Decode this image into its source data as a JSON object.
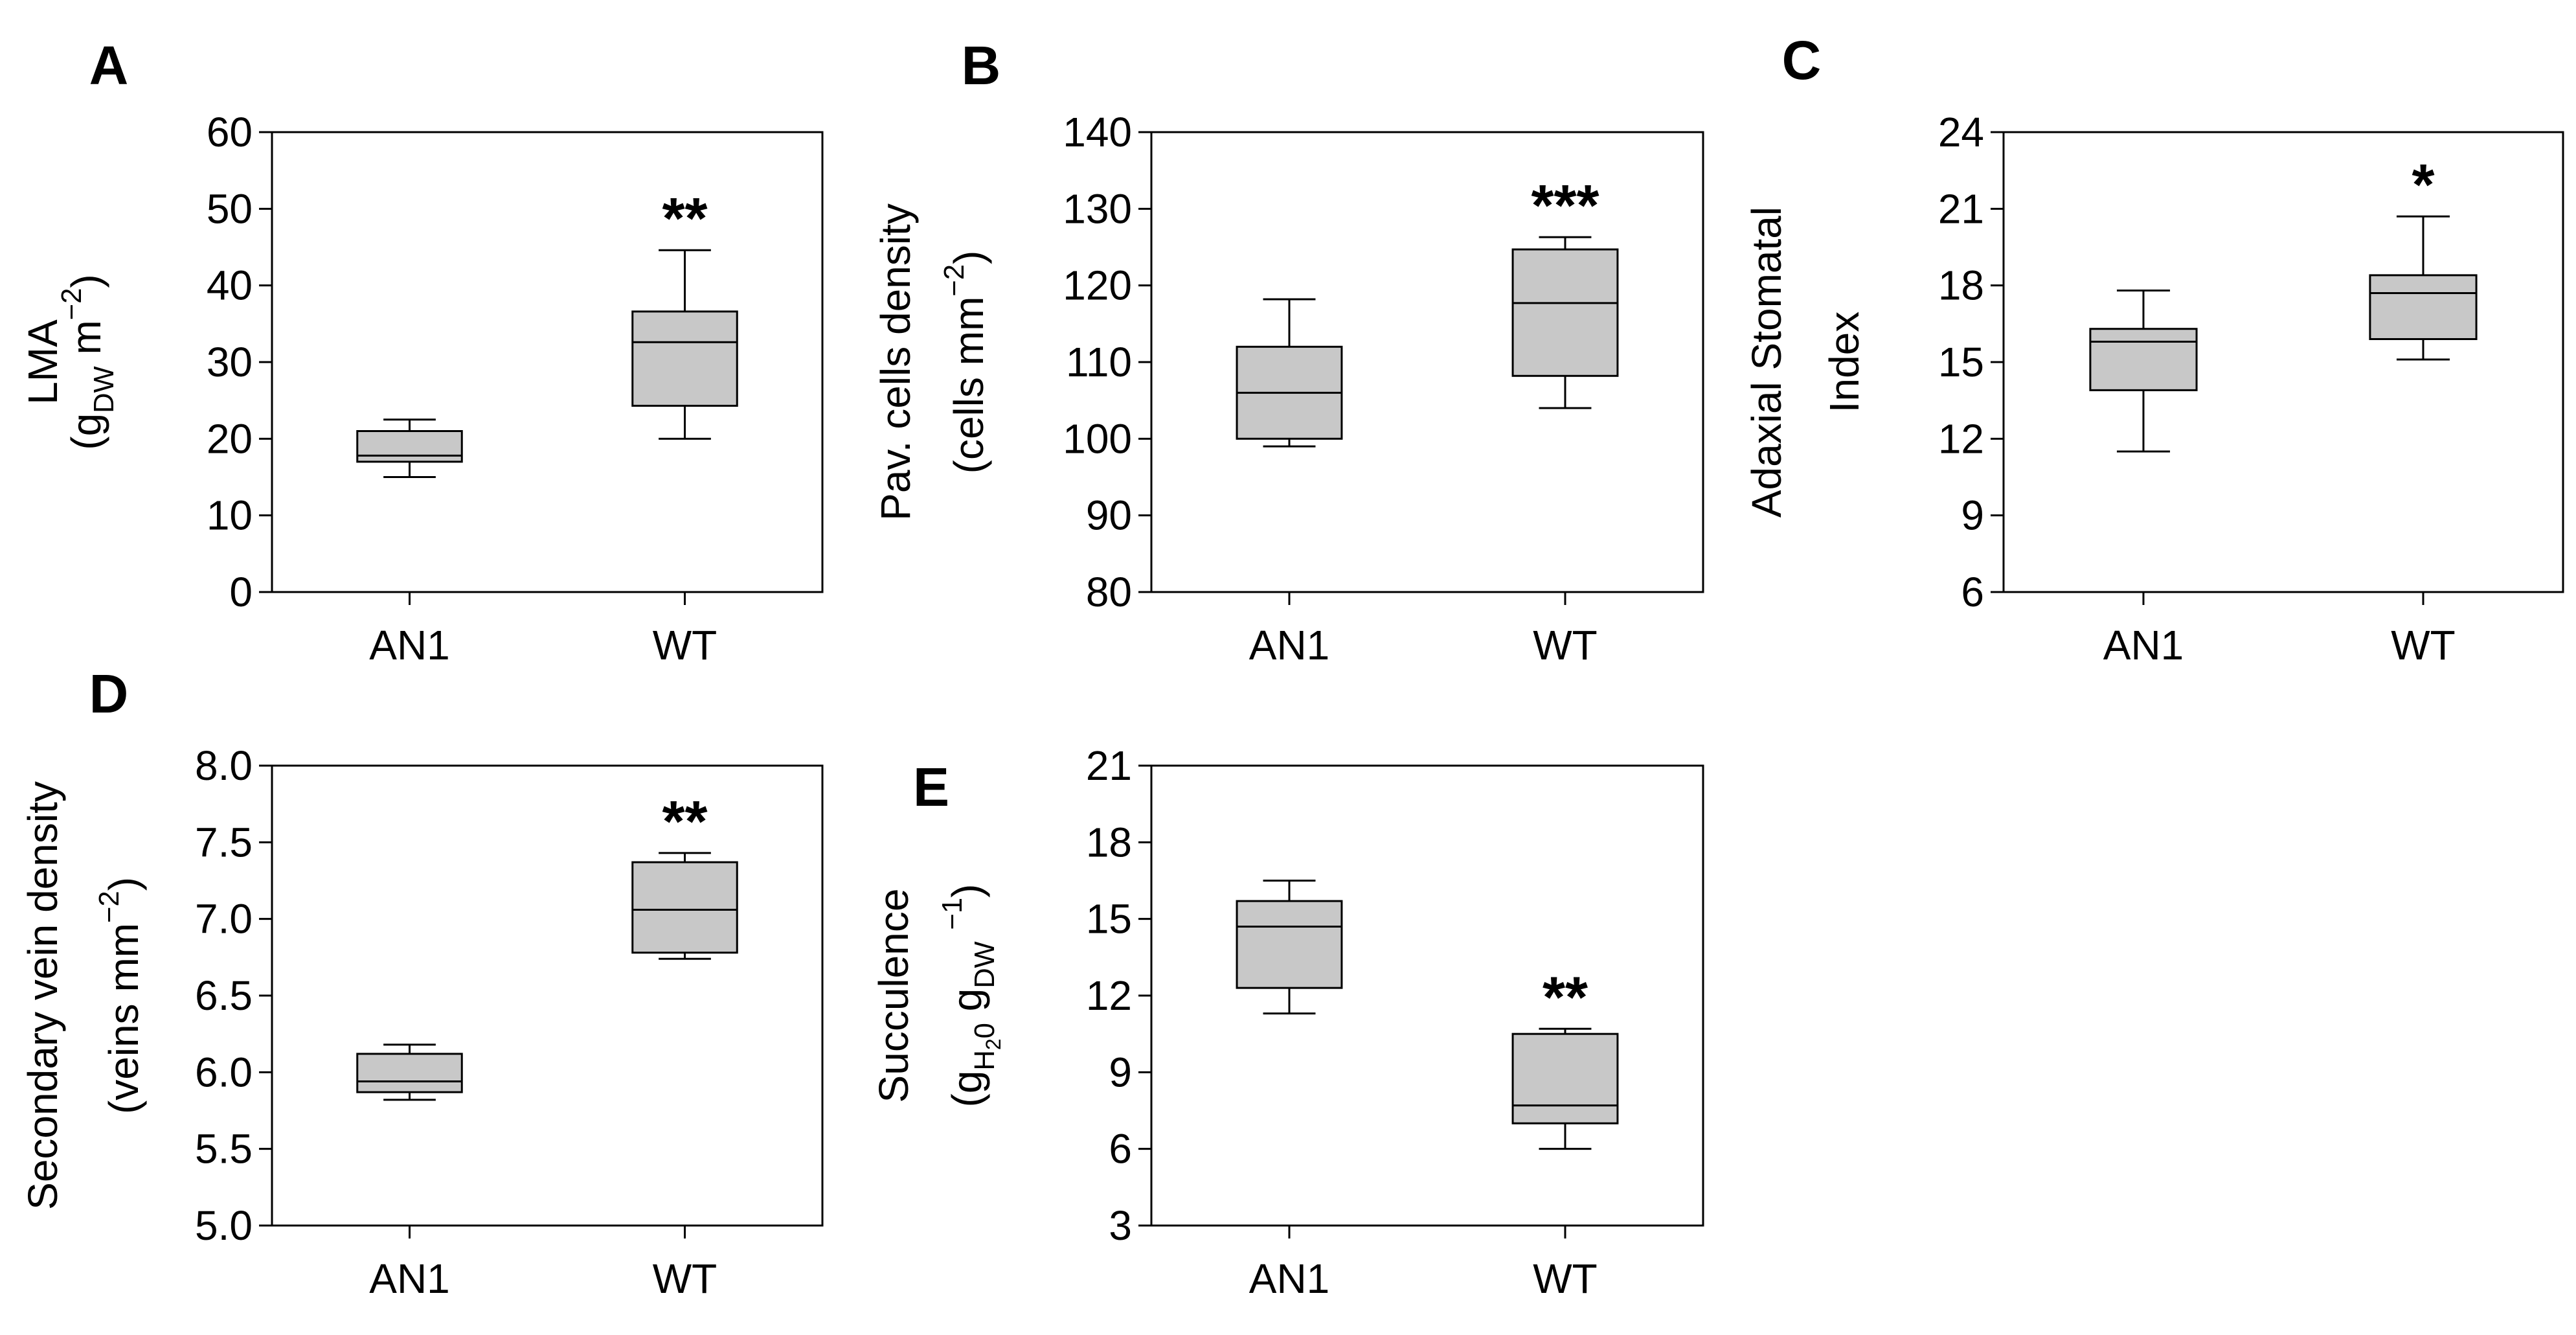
{
  "colors": {
    "box_fill": "#c8c8c8",
    "stroke": "#000000",
    "background": "#ffffff"
  },
  "chart_data": [
    {
      "id": "A",
      "type": "box",
      "panel_label": "A",
      "ylabel_lines": [
        [
          {
            "t": "LMA"
          }
        ],
        [
          {
            "t": "(g"
          },
          {
            "t": "DW",
            "sub": true
          },
          {
            "t": " m"
          },
          {
            "t": "−2",
            "sup": true
          },
          {
            "t": ")"
          }
        ]
      ],
      "ylim": [
        0,
        60
      ],
      "yticks": [
        0,
        10,
        20,
        30,
        40,
        50,
        60
      ],
      "tick_labels": [
        "0",
        "10",
        "20",
        "30",
        "40",
        "50",
        "60"
      ],
      "categories": [
        "AN1",
        "WT"
      ],
      "boxes": [
        {
          "category": "AN1",
          "whisker_low": 15,
          "q1": 17,
          "median": 17.8,
          "q3": 21,
          "whisker_high": 22.5,
          "signif": ""
        },
        {
          "category": "WT",
          "whisker_low": 20,
          "q1": 24.3,
          "median": 32.6,
          "q3": 36.6,
          "whisker_high": 44.6,
          "signif": "**"
        }
      ]
    },
    {
      "id": "B",
      "type": "box",
      "panel_label": "B",
      "ylabel_lines": [
        [
          {
            "t": "Pav. cells density"
          }
        ],
        [
          {
            "t": "(cells mm"
          },
          {
            "t": "−2",
            "sup": true
          },
          {
            "t": ")"
          }
        ]
      ],
      "ylim": [
        80,
        140
      ],
      "yticks": [
        80,
        90,
        100,
        110,
        120,
        130,
        140
      ],
      "tick_labels": [
        "80",
        "90",
        "100",
        "110",
        "120",
        "130",
        "140"
      ],
      "categories": [
        "AN1",
        "WT"
      ],
      "boxes": [
        {
          "category": "AN1",
          "whisker_low": 99,
          "q1": 100,
          "median": 106,
          "q3": 112,
          "whisker_high": 118.2,
          "signif": ""
        },
        {
          "category": "WT",
          "whisker_low": 104,
          "q1": 108.2,
          "median": 117.7,
          "q3": 124.7,
          "whisker_high": 126.3,
          "signif": "***"
        }
      ]
    },
    {
      "id": "C",
      "type": "box",
      "panel_label": "C",
      "ylabel_lines": [
        [
          {
            "t": "Adaxial Stomatal"
          }
        ],
        [
          {
            "t": "Index"
          }
        ]
      ],
      "ylim": [
        6,
        24
      ],
      "yticks": [
        6,
        9,
        12,
        15,
        18,
        21,
        24
      ],
      "tick_labels": [
        "6",
        "9",
        "12",
        "15",
        "18",
        "21",
        "24"
      ],
      "categories": [
        "AN1",
        "WT"
      ],
      "boxes": [
        {
          "category": "AN1",
          "whisker_low": 11.5,
          "q1": 13.9,
          "median": 15.8,
          "q3": 16.3,
          "whisker_high": 17.8,
          "signif": ""
        },
        {
          "category": "WT",
          "whisker_low": 15.1,
          "q1": 15.9,
          "median": 17.7,
          "q3": 18.4,
          "whisker_high": 20.7,
          "signif": "*"
        }
      ]
    },
    {
      "id": "D",
      "type": "box",
      "panel_label": "D",
      "ylabel_lines": [
        [
          {
            "t": "Secondary vein density"
          }
        ],
        [
          {
            "t": "(veins mm"
          },
          {
            "t": "−2",
            "sup": true
          },
          {
            "t": ")"
          }
        ]
      ],
      "ylim": [
        5.0,
        8.0
      ],
      "yticks": [
        5.0,
        5.5,
        6.0,
        6.5,
        7.0,
        7.5,
        8.0
      ],
      "tick_labels": [
        "5.0",
        "5.5",
        "6.0",
        "6.5",
        "7.0",
        "7.5",
        "8.0"
      ],
      "categories": [
        "AN1",
        "WT"
      ],
      "boxes": [
        {
          "category": "AN1",
          "whisker_low": 5.82,
          "q1": 5.87,
          "median": 5.94,
          "q3": 6.12,
          "whisker_high": 6.18,
          "signif": ""
        },
        {
          "category": "WT",
          "whisker_low": 6.74,
          "q1": 6.78,
          "median": 7.06,
          "q3": 7.37,
          "whisker_high": 7.43,
          "signif": "**"
        }
      ]
    },
    {
      "id": "E",
      "type": "box",
      "panel_label": "E",
      "ylabel_lines": [
        [
          {
            "t": "Succulence"
          }
        ],
        [
          {
            "t": "(g"
          },
          {
            "t": "H",
            "sub": true
          },
          {
            "t": "2",
            "sub2": true
          },
          {
            "t": "0",
            "sub": true
          },
          {
            "t": " g"
          },
          {
            "t": "DW",
            "sub": true
          },
          {
            "t": "   "
          },
          {
            "t": "−1",
            "sup": true
          },
          {
            "t": ")"
          }
        ]
      ],
      "ylim": [
        3,
        21
      ],
      "yticks": [
        3,
        6,
        9,
        12,
        15,
        18,
        21
      ],
      "tick_labels": [
        "3",
        "6",
        "9",
        "12",
        "15",
        "18",
        "21"
      ],
      "categories": [
        "AN1",
        "WT"
      ],
      "boxes": [
        {
          "category": "AN1",
          "whisker_low": 11.3,
          "q1": 12.3,
          "median": 14.7,
          "q3": 15.7,
          "whisker_high": 16.5,
          "signif": ""
        },
        {
          "category": "WT",
          "whisker_low": 6,
          "q1": 7,
          "median": 7.7,
          "q3": 10.5,
          "whisker_high": 10.7,
          "signif": "**"
        }
      ]
    }
  ]
}
